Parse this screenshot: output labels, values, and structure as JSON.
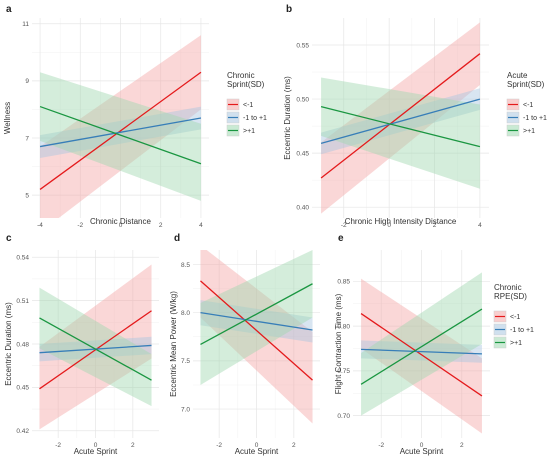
{
  "chart_data": [
    {
      "panel": "a",
      "type": "line",
      "xlabel": "Chronic Distance",
      "ylabel": "Wellness",
      "xlim": [
        -4.4,
        4.4
      ],
      "ylim": [
        4.2,
        11.2
      ],
      "x_ticks": [
        -4,
        -2,
        0,
        2,
        4
      ],
      "y_ticks": [
        5,
        7,
        9,
        11
      ],
      "legend": "Chronic Sprint(SD)",
      "series": [
        {
          "name": "<-1",
          "color": "#e41a1c",
          "band": "#f4a6a6",
          "x": [
            -4,
            4
          ],
          "y": [
            5.2,
            9.3
          ],
          "lower": [
            3.7,
            8.0
          ],
          "upper": [
            6.7,
            10.6
          ]
        },
        {
          "name": "-1 to +1",
          "color": "#377eb8",
          "band": "#a9c6e0",
          "x": [
            -4,
            4
          ],
          "y": [
            6.7,
            7.7
          ],
          "lower": [
            6.3,
            7.3
          ],
          "upper": [
            7.1,
            8.1
          ]
        },
        {
          "name": ">+1",
          "color": "#1a9641",
          "band": "#9fd8b0",
          "x": [
            -4,
            4
          ],
          "y": [
            8.1,
            6.1
          ],
          "lower": [
            6.9,
            4.8
          ],
          "upper": [
            9.3,
            7.5
          ]
        }
      ]
    },
    {
      "panel": "b",
      "type": "line",
      "xlabel": "Chronic High Intensity Distance",
      "ylabel": "Eccentric Duration (ms)",
      "xlim": [
        -3.4,
        4.4
      ],
      "ylim": [
        0.39,
        0.575
      ],
      "x_ticks": [
        -2,
        0,
        2,
        4
      ],
      "y_ticks": [
        0.4,
        0.45,
        0.5,
        0.55
      ],
      "y_tick_labels": [
        "0.40",
        "0.45",
        "0.50",
        "0.55"
      ],
      "legend": "Acute Sprint(SD)",
      "series": [
        {
          "name": "<-1",
          "color": "#e41a1c",
          "band": "#f4a6a6",
          "x": [
            -3,
            4
          ],
          "y": [
            0.427,
            0.542
          ],
          "lower": [
            0.394,
            0.513
          ],
          "upper": [
            0.46,
            0.571
          ]
        },
        {
          "name": "-1 to +1",
          "color": "#377eb8",
          "band": "#a9c6e0",
          "x": [
            -3,
            4
          ],
          "y": [
            0.459,
            0.5
          ],
          "lower": [
            0.449,
            0.49
          ],
          "upper": [
            0.469,
            0.51
          ]
        },
        {
          "name": ">+1",
          "color": "#1a9641",
          "band": "#9fd8b0",
          "x": [
            -3,
            4
          ],
          "y": [
            0.493,
            0.456
          ],
          "lower": [
            0.466,
            0.417
          ],
          "upper": [
            0.52,
            0.495
          ]
        }
      ]
    },
    {
      "panel": "c",
      "type": "line",
      "xlabel": "Acute Sprint",
      "ylabel": "Eccentric Duration (ms)",
      "xlim": [
        -3.4,
        3.4
      ],
      "ylim": [
        0.415,
        0.545
      ],
      "x_ticks": [
        -2,
        0,
        2
      ],
      "y_ticks": [
        0.42,
        0.45,
        0.48,
        0.51,
        0.54
      ],
      "y_tick_labels": [
        "0.42",
        "0.45",
        "0.48",
        "0.51",
        "0.54"
      ],
      "series": [
        {
          "name": "<-1",
          "color": "#e41a1c",
          "band": "#f4a6a6",
          "x": [
            -3,
            3
          ],
          "y": [
            0.449,
            0.503
          ],
          "lower": [
            0.421,
            0.47
          ],
          "upper": [
            0.478,
            0.535
          ]
        },
        {
          "name": "-1 to +1",
          "color": "#377eb8",
          "band": "#a9c6e0",
          "x": [
            -3,
            3
          ],
          "y": [
            0.474,
            0.479
          ],
          "lower": [
            0.468,
            0.473
          ],
          "upper": [
            0.48,
            0.485
          ]
        },
        {
          "name": ">+1",
          "color": "#1a9641",
          "band": "#9fd8b0",
          "x": [
            -3,
            3
          ],
          "y": [
            0.498,
            0.455
          ],
          "lower": [
            0.477,
            0.437
          ],
          "upper": [
            0.519,
            0.473
          ]
        }
      ]
    },
    {
      "panel": "d",
      "type": "line",
      "xlabel": "Acute Sprint",
      "ylabel": "Eccentric Mean Power (W/kg)",
      "xlim": [
        -3.4,
        3.4
      ],
      "ylim": [
        6.7,
        8.65
      ],
      "x_ticks": [
        -2,
        0,
        2
      ],
      "y_ticks": [
        7.0,
        7.5,
        8.0,
        8.5
      ],
      "y_tick_labels": [
        "7.0",
        "7.5",
        "8.0",
        "8.5"
      ],
      "series": [
        {
          "name": "<-1",
          "color": "#e41a1c",
          "band": "#f4a6a6",
          "x": [
            -3,
            3
          ],
          "y": [
            8.33,
            7.3
          ],
          "lower": [
            7.95,
            6.85
          ],
          "upper": [
            8.7,
            7.8
          ]
        },
        {
          "name": "-1 to +1",
          "color": "#377eb8",
          "band": "#a9c6e0",
          "x": [
            -3,
            3
          ],
          "y": [
            8.0,
            7.82
          ],
          "lower": [
            7.87,
            7.69
          ],
          "upper": [
            8.13,
            7.95
          ]
        },
        {
          "name": ">+1",
          "color": "#1a9641",
          "band": "#9fd8b0",
          "x": [
            -3,
            3
          ],
          "y": [
            7.67,
            8.3
          ],
          "lower": [
            7.25,
            7.95
          ],
          "upper": [
            8.1,
            8.65
          ]
        }
      ]
    },
    {
      "panel": "e",
      "type": "line",
      "xlabel": "Acute Sprint",
      "ylabel": "Flight Contraction Time (ms)",
      "xlim": [
        -3.4,
        3.4
      ],
      "ylim": [
        0.675,
        0.885
      ],
      "x_ticks": [
        -2,
        0,
        2
      ],
      "y_ticks": [
        0.7,
        0.75,
        0.8,
        0.85
      ],
      "y_tick_labels": [
        "0.70",
        "0.75",
        "0.80",
        "0.85"
      ],
      "legend": "Chronic RPE(SD)",
      "series": [
        {
          "name": "<-1",
          "color": "#e41a1c",
          "band": "#f4a6a6",
          "x": [
            -3,
            3
          ],
          "y": [
            0.814,
            0.722
          ],
          "lower": [
            0.775,
            0.68
          ],
          "upper": [
            0.853,
            0.764
          ]
        },
        {
          "name": "-1 to +1",
          "color": "#377eb8",
          "band": "#a9c6e0",
          "x": [
            -3,
            3
          ],
          "y": [
            0.774,
            0.769
          ],
          "lower": [
            0.764,
            0.759
          ],
          "upper": [
            0.784,
            0.779
          ]
        },
        {
          "name": ">+1",
          "color": "#1a9641",
          "band": "#9fd8b0",
          "x": [
            -3,
            3
          ],
          "y": [
            0.735,
            0.819
          ],
          "lower": [
            0.7,
            0.78
          ],
          "upper": [
            0.77,
            0.86
          ]
        }
      ]
    }
  ]
}
